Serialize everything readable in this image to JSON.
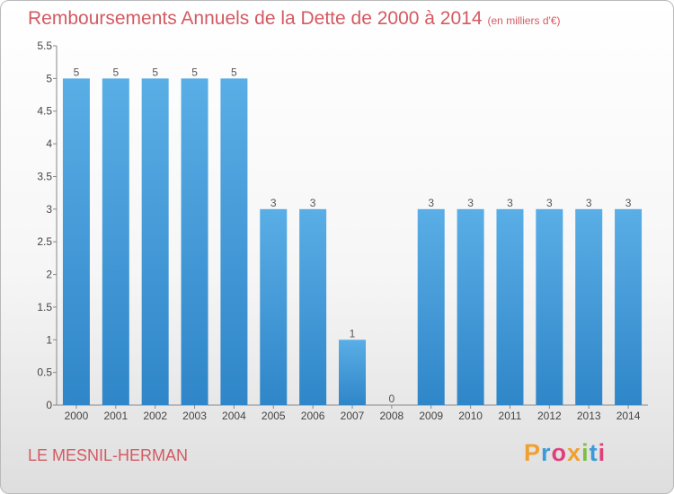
{
  "header": {
    "title": "Remboursements Annuels de la Dette de 2000 à 2014",
    "unit": "(en milliers d'€)"
  },
  "footer": {
    "commune": "LE MESNIL-HERMAN",
    "logo": {
      "letters": [
        "P",
        "r",
        "o",
        "x",
        "i",
        "t",
        "i"
      ],
      "colors": [
        "#f0a030",
        "#3a9bd8",
        "#e0407a",
        "#f0a030",
        "#7ac043",
        "#3a9bd8",
        "#e0407a"
      ]
    }
  },
  "colors": {
    "bar": "#5aaee6",
    "bar_dark": "#2f86c8",
    "axis": "#888888",
    "grid": "#cccccc"
  },
  "chart_data": {
    "type": "bar",
    "categories": [
      "2000",
      "2001",
      "2002",
      "2003",
      "2004",
      "2005",
      "2006",
      "2007",
      "2008",
      "2009",
      "2010",
      "2011",
      "2012",
      "2013",
      "2014"
    ],
    "values": [
      5,
      5,
      5,
      5,
      5,
      3,
      3,
      1,
      0,
      3,
      3,
      3,
      3,
      3,
      3
    ],
    "ylim": [
      0,
      5.5
    ],
    "yticks": [
      0,
      0.5,
      1,
      1.5,
      2,
      2.5,
      3,
      3.5,
      4,
      4.5,
      5,
      5.5
    ],
    "ytick_labels": [
      "0",
      "0.5",
      "1",
      "1.5",
      "2",
      "2.5",
      "3",
      "3.5",
      "4",
      "4.5",
      "5",
      "5.5"
    ],
    "grid": false,
    "legend": "none"
  }
}
